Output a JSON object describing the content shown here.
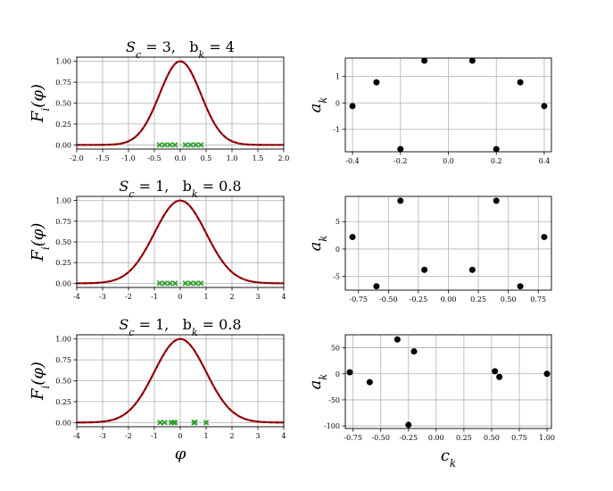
{
  "chart_data": [
    {
      "type": "line",
      "title": "S_c = 3,   b_k = 4",
      "xlabel": "",
      "ylabel": "F_i(φ)",
      "xlim": [
        -2.0,
        2.0
      ],
      "ylim": [
        -0.05,
        1.05
      ],
      "xticks": [
        "-2.0",
        "-1.5",
        "-1.0",
        "-0.5",
        "0.0",
        "0.5",
        "1.0",
        "1.5",
        "2.0"
      ],
      "xtick_values": [
        -2.0,
        -1.5,
        -1.0,
        -0.5,
        0.0,
        0.5,
        1.0,
        1.5,
        2.0
      ],
      "yticks": [
        "0.00",
        "0.25",
        "0.50",
        "0.75",
        "1.00"
      ],
      "ytick_values": [
        0.0,
        0.25,
        0.5,
        0.75,
        1.0
      ],
      "gaussian_width": 0.4,
      "markers_x": [
        -0.4,
        -0.3,
        -0.2,
        -0.1,
        0.1,
        0.2,
        0.3,
        0.4
      ],
      "grid": true,
      "colors": {
        "curve": "#c00000",
        "dash": "#1a1a1a",
        "marker": "#2ca02c"
      }
    },
    {
      "type": "scatter",
      "xlabel": "",
      "ylabel": "a_k",
      "xlim": [
        -0.43,
        0.43
      ],
      "ylim": [
        -1.85,
        1.7
      ],
      "xticks": [
        "-0.4",
        "-0.2",
        "0.0",
        "0.2",
        "0.4"
      ],
      "xtick_values": [
        -0.4,
        -0.2,
        0.0,
        0.2,
        0.4
      ],
      "yticks": [
        "-1",
        "0",
        "1"
      ],
      "ytick_values": [
        -1,
        0,
        1
      ],
      "x": [
        -0.4,
        -0.3,
        -0.2,
        -0.1,
        0.1,
        0.2,
        0.3,
        0.4
      ],
      "y": [
        -0.12,
        0.78,
        -1.75,
        1.6,
        1.6,
        -1.75,
        0.78,
        -0.12
      ],
      "grid": true
    },
    {
      "type": "line",
      "title": "S_c = 1,   b_k = 0.8",
      "xlabel": "",
      "ylabel": "F_i(φ)",
      "xlim": [
        -4,
        4
      ],
      "ylim": [
        -0.05,
        1.05
      ],
      "xticks": [
        "-4",
        "-3",
        "-2",
        "-1",
        "0",
        "1",
        "2",
        "3",
        "4"
      ],
      "xtick_values": [
        -4,
        -3,
        -2,
        -1,
        0,
        1,
        2,
        3,
        4
      ],
      "yticks": [
        "0.00",
        "0.25",
        "0.50",
        "0.75",
        "1.00"
      ],
      "ytick_values": [
        0.0,
        0.25,
        0.5,
        0.75,
        1.0
      ],
      "gaussian_width": 1.0,
      "markers_x": [
        -0.8,
        -0.6,
        -0.4,
        -0.2,
        0.2,
        0.4,
        0.6,
        0.8
      ],
      "grid": true,
      "colors": {
        "curve": "#c00000",
        "dash": "#1a1a1a",
        "marker": "#2ca02c"
      }
    },
    {
      "type": "scatter",
      "xlabel": "",
      "ylabel": "a_k",
      "xlim": [
        -0.86,
        0.86
      ],
      "ylim": [
        -7.5,
        9.6
      ],
      "xticks": [
        "-0.75",
        "-0.50",
        "-0.25",
        "0.00",
        "0.25",
        "0.50",
        "0.75"
      ],
      "xtick_values": [
        -0.75,
        -0.5,
        -0.25,
        0.0,
        0.25,
        0.5,
        0.75
      ],
      "yticks": [
        "-5",
        "0",
        "5"
      ],
      "ytick_values": [
        -5,
        0,
        5
      ],
      "x": [
        -0.8,
        -0.6,
        -0.4,
        -0.2,
        0.2,
        0.4,
        0.6,
        0.8
      ],
      "y": [
        2.2,
        -6.8,
        8.8,
        -3.8,
        -3.8,
        8.8,
        -6.8,
        2.2
      ],
      "grid": true
    },
    {
      "type": "line",
      "title": "S_c = 1,   b_k = 0.8",
      "xlabel": "φ",
      "ylabel": "F_i(φ)",
      "xlim": [
        -4,
        4
      ],
      "ylim": [
        -0.05,
        1.05
      ],
      "xticks": [
        "-4",
        "-3",
        "-2",
        "-1",
        "0",
        "1",
        "2",
        "3",
        "4"
      ],
      "xtick_values": [
        -4,
        -3,
        -2,
        -1,
        0,
        1,
        2,
        3,
        4
      ],
      "yticks": [
        "0.00",
        "0.25",
        "0.50",
        "0.75",
        "1.00"
      ],
      "ytick_values": [
        0.0,
        0.25,
        0.5,
        0.75,
        1.0
      ],
      "gaussian_width": 1.0,
      "markers_x": [
        -0.78,
        -0.6,
        -0.35,
        -0.25,
        -0.2,
        0.53,
        0.57,
        1.0
      ],
      "grid": true,
      "colors": {
        "curve": "#c00000",
        "dash": "#1a1a1a",
        "marker": "#2ca02c"
      }
    },
    {
      "type": "scatter",
      "xlabel": "c_k",
      "ylabel": "a_k",
      "xlim": [
        -0.82,
        1.04
      ],
      "ylim": [
        -105,
        75
      ],
      "xticks": [
        "-0.75",
        "-0.50",
        "-0.25",
        "0.00",
        "0.25",
        "0.50",
        "0.75",
        "1.00"
      ],
      "xtick_values": [
        -0.75,
        -0.5,
        -0.25,
        0.0,
        0.25,
        0.5,
        0.75,
        1.0
      ],
      "yticks": [
        "-100",
        "-50",
        "0",
        "50"
      ],
      "ytick_values": [
        -100,
        -50,
        0,
        50
      ],
      "x": [
        -0.78,
        -0.6,
        -0.35,
        -0.25,
        -0.2,
        0.53,
        0.57,
        1.0
      ],
      "y": [
        3,
        -16,
        66,
        -98,
        43,
        5,
        -6,
        0
      ],
      "grid": true
    }
  ]
}
